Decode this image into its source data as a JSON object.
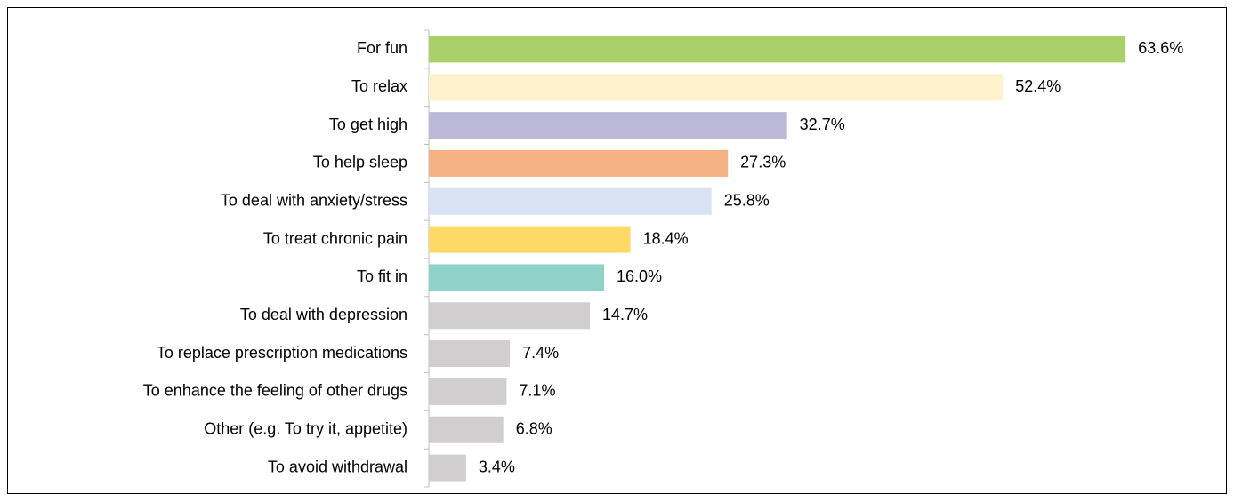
{
  "chart_data": {
    "type": "barh",
    "categories": [
      "For fun",
      "To relax",
      "To get high",
      "To help sleep",
      "To deal with anxiety/stress",
      "To treat chronic pain",
      "To fit in",
      "To deal with depression",
      "To replace prescription medications",
      "To enhance the feeling of other drugs",
      "Other (e.g. To try it, appetite)",
      "To avoid withdrawal"
    ],
    "values": [
      63.6,
      52.4,
      32.7,
      27.3,
      25.8,
      18.4,
      16.0,
      14.7,
      7.4,
      7.1,
      6.8,
      3.4
    ],
    "value_labels": [
      "63.6%",
      "52.4%",
      "32.7%",
      "27.3%",
      "25.8%",
      "18.4%",
      "16.0%",
      "14.7%",
      "7.4%",
      "7.1%",
      "6.8%",
      "3.4%"
    ],
    "colors": [
      "#a9d06a",
      "#fff2cc",
      "#bcb8d8",
      "#f4b183",
      "#dae3f3",
      "#ffd966",
      "#8fd3c8",
      "#d0cece",
      "#d0cece",
      "#d0cece",
      "#d0cece",
      "#d0cece"
    ],
    "xlim": [
      0,
      70
    ]
  }
}
